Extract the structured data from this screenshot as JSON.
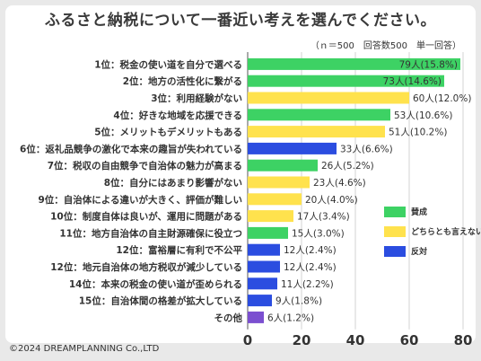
{
  "title": "ふるさと納税について一番近い考えを選んでください。",
  "note": "（ｎ＝500　回答数500　単一回答）",
  "copyright": "©2024 DREAMPLANNING Co.,LTD",
  "colors": {
    "賛成": "#3dd264",
    "どちらとも言えない": "#ffe24d",
    "反対": "#2b4de0",
    "その他": "#7b4fd0"
  },
  "legend": [
    {
      "label": "賛成",
      "color_key": "賛成"
    },
    {
      "label": "どちらとも言えない",
      "color_key": "どちらとも言えない"
    },
    {
      "label": "反対",
      "color_key": "反対"
    }
  ],
  "chart_data": {
    "type": "bar",
    "orientation": "horizontal",
    "xlim": [
      0,
      80
    ],
    "xticks": [
      "0",
      "20",
      "40",
      "60",
      "80"
    ],
    "grid": true,
    "categories": [
      "1位：税金の使い道を自分で選べる",
      "2位：地方の活性化に繋がる",
      "3位：利用経験がない",
      "4位：好きな地域を応援できる",
      "5位：メリットもデメリットもある",
      "6位：返礼品競争の激化で本来の趣旨が失われている",
      "7位：税収の自由競争で自治体の魅力が高まる",
      "8位：自分にはあまり影響がない",
      "9位：自治体による違いが大きく、評価が難しい",
      "10位：制度自体は良いが、運用に問題がある",
      "11位：地方自治体の自主財源確保に役立つ",
      "12位：富裕層に有利で不公平",
      "12位：地元自治体の地方税収が減少している",
      "14位：本来の税金の使い道が歪められる",
      "15位：自治体間の格差が拡大している",
      "その他"
    ],
    "values": [
      79,
      73,
      60,
      53,
      51,
      33,
      26,
      23,
      20,
      17,
      15,
      12,
      12,
      11,
      9,
      6
    ],
    "value_labels": [
      "79人(15.8%)",
      "73人(14.6%)",
      "60人(12.0%)",
      "53人(10.6%)",
      "51人(10.2%)",
      "33人(6.6%)",
      "26人(5.2%)",
      "23人(4.6%)",
      "20人(4.0%)",
      "17人(3.4%)",
      "15人(3.0%)",
      "12人(2.4%)",
      "12人(2.4%)",
      "11人(2.2%)",
      "9人(1.8%)",
      "6人(1.2%)"
    ],
    "groups": [
      "賛成",
      "賛成",
      "どちらとも言えない",
      "賛成",
      "どちらとも言えない",
      "反対",
      "賛成",
      "どちらとも言えない",
      "どちらとも言えない",
      "どちらとも言えない",
      "賛成",
      "反対",
      "反対",
      "反対",
      "反対",
      "その他"
    ]
  }
}
